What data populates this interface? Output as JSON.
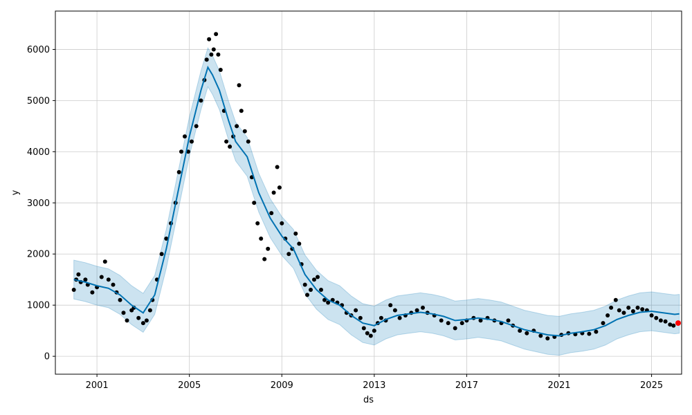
{
  "chart_data": {
    "type": "scatter",
    "xlabel": "ds",
    "ylabel": "y",
    "xlim": [
      1999.2,
      2026.3
    ],
    "ylim": [
      -350,
      6750
    ],
    "x_ticks": [
      "2001",
      "2005",
      "2009",
      "2013",
      "2017",
      "2021",
      "2025"
    ],
    "y_ticks": [
      "0",
      "1000",
      "2000",
      "3000",
      "4000",
      "5000",
      "6000"
    ],
    "grid": true,
    "colors": {
      "points": "#000000",
      "forecast_line": "#0072B2",
      "uncertainty_band": "#0072B2",
      "last_point": "#ff0000"
    },
    "series": [
      {
        "kind": "observed",
        "points": [
          [
            2000.0,
            1300
          ],
          [
            2000.1,
            1500
          ],
          [
            2000.2,
            1600
          ],
          [
            2000.3,
            1450
          ],
          [
            2000.5,
            1500
          ],
          [
            2000.6,
            1400
          ],
          [
            2000.8,
            1250
          ],
          [
            2001.0,
            1350
          ],
          [
            2001.2,
            1550
          ],
          [
            2001.35,
            1850
          ],
          [
            2001.5,
            1500
          ],
          [
            2001.7,
            1400
          ],
          [
            2001.85,
            1250
          ],
          [
            2002.0,
            1100
          ],
          [
            2002.15,
            850
          ],
          [
            2002.3,
            700
          ],
          [
            2002.5,
            900
          ],
          [
            2002.6,
            950
          ],
          [
            2002.8,
            750
          ],
          [
            2003.0,
            650
          ],
          [
            2003.15,
            700
          ],
          [
            2003.3,
            900
          ],
          [
            2003.4,
            1100
          ],
          [
            2003.6,
            1500
          ],
          [
            2003.8,
            2000
          ],
          [
            2004.0,
            2300
          ],
          [
            2004.2,
            2600
          ],
          [
            2004.4,
            3000
          ],
          [
            2004.55,
            3600
          ],
          [
            2004.65,
            4000
          ],
          [
            2004.8,
            4300
          ],
          [
            2004.95,
            4000
          ],
          [
            2005.1,
            4200
          ],
          [
            2005.3,
            4500
          ],
          [
            2005.5,
            5000
          ],
          [
            2005.65,
            5400
          ],
          [
            2005.75,
            5800
          ],
          [
            2005.85,
            6200
          ],
          [
            2005.95,
            5900
          ],
          [
            2006.05,
            6000
          ],
          [
            2006.15,
            6300
          ],
          [
            2006.25,
            5900
          ],
          [
            2006.35,
            5600
          ],
          [
            2006.5,
            4800
          ],
          [
            2006.6,
            4200
          ],
          [
            2006.75,
            4100
          ],
          [
            2006.9,
            4300
          ],
          [
            2007.05,
            4500
          ],
          [
            2007.15,
            5300
          ],
          [
            2007.25,
            4800
          ],
          [
            2007.4,
            4400
          ],
          [
            2007.55,
            4200
          ],
          [
            2007.7,
            3500
          ],
          [
            2007.8,
            3000
          ],
          [
            2007.95,
            2600
          ],
          [
            2008.1,
            2300
          ],
          [
            2008.25,
            1900
          ],
          [
            2008.4,
            2100
          ],
          [
            2008.55,
            2800
          ],
          [
            2008.65,
            3200
          ],
          [
            2008.8,
            3700
          ],
          [
            2008.9,
            3300
          ],
          [
            2009.0,
            2600
          ],
          [
            2009.15,
            2300
          ],
          [
            2009.3,
            2000
          ],
          [
            2009.45,
            2100
          ],
          [
            2009.6,
            2400
          ],
          [
            2009.75,
            2200
          ],
          [
            2009.85,
            1800
          ],
          [
            2010.0,
            1400
          ],
          [
            2010.1,
            1200
          ],
          [
            2010.25,
            1300
          ],
          [
            2010.4,
            1500
          ],
          [
            2010.55,
            1550
          ],
          [
            2010.7,
            1300
          ],
          [
            2010.85,
            1100
          ],
          [
            2011.0,
            1050
          ],
          [
            2011.2,
            1100
          ],
          [
            2011.4,
            1050
          ],
          [
            2011.6,
            1000
          ],
          [
            2011.8,
            850
          ],
          [
            2012.0,
            800
          ],
          [
            2012.2,
            900
          ],
          [
            2012.4,
            750
          ],
          [
            2012.55,
            550
          ],
          [
            2012.7,
            450
          ],
          [
            2012.85,
            400
          ],
          [
            2013.0,
            500
          ],
          [
            2013.15,
            650
          ],
          [
            2013.3,
            750
          ],
          [
            2013.5,
            700
          ],
          [
            2013.7,
            1000
          ],
          [
            2013.9,
            900
          ],
          [
            2014.1,
            750
          ],
          [
            2014.35,
            800
          ],
          [
            2014.6,
            850
          ],
          [
            2014.85,
            900
          ],
          [
            2015.1,
            950
          ],
          [
            2015.3,
            850
          ],
          [
            2015.6,
            800
          ],
          [
            2015.9,
            700
          ],
          [
            2016.2,
            650
          ],
          [
            2016.5,
            550
          ],
          [
            2016.8,
            650
          ],
          [
            2017.0,
            700
          ],
          [
            2017.3,
            750
          ],
          [
            2017.6,
            700
          ],
          [
            2017.9,
            750
          ],
          [
            2018.2,
            700
          ],
          [
            2018.5,
            650
          ],
          [
            2018.8,
            700
          ],
          [
            2019.0,
            600
          ],
          [
            2019.3,
            500
          ],
          [
            2019.6,
            450
          ],
          [
            2019.9,
            500
          ],
          [
            2020.2,
            400
          ],
          [
            2020.5,
            350
          ],
          [
            2020.8,
            380
          ],
          [
            2021.1,
            420
          ],
          [
            2021.4,
            450
          ],
          [
            2021.7,
            430
          ],
          [
            2022.0,
            450
          ],
          [
            2022.3,
            440
          ],
          [
            2022.6,
            480
          ],
          [
            2022.9,
            650
          ],
          [
            2023.1,
            800
          ],
          [
            2023.25,
            950
          ],
          [
            2023.45,
            1100
          ],
          [
            2023.6,
            900
          ],
          [
            2023.8,
            850
          ],
          [
            2024.0,
            950
          ],
          [
            2024.2,
            880
          ],
          [
            2024.4,
            950
          ],
          [
            2024.6,
            920
          ],
          [
            2024.8,
            900
          ],
          [
            2025.0,
            800
          ],
          [
            2025.2,
            750
          ],
          [
            2025.4,
            700
          ],
          [
            2025.6,
            680
          ],
          [
            2025.8,
            620
          ],
          [
            2025.95,
            600
          ]
        ]
      },
      {
        "kind": "forecast",
        "points": [
          [
            2000.0,
            1500
          ],
          [
            2000.5,
            1450
          ],
          [
            2001.0,
            1380
          ],
          [
            2001.5,
            1330
          ],
          [
            2002.0,
            1200
          ],
          [
            2002.5,
            1000
          ],
          [
            2003.0,
            850
          ],
          [
            2003.5,
            1200
          ],
          [
            2004.0,
            2100
          ],
          [
            2004.5,
            3200
          ],
          [
            2005.0,
            4300
          ],
          [
            2005.5,
            5200
          ],
          [
            2005.8,
            5650
          ],
          [
            2006.0,
            5500
          ],
          [
            2006.3,
            5200
          ],
          [
            2006.7,
            4600
          ],
          [
            2007.0,
            4200
          ],
          [
            2007.5,
            3900
          ],
          [
            2008.0,
            3200
          ],
          [
            2008.5,
            2700
          ],
          [
            2009.0,
            2350
          ],
          [
            2009.5,
            2100
          ],
          [
            2010.0,
            1600
          ],
          [
            2010.5,
            1300
          ],
          [
            2011.0,
            1100
          ],
          [
            2011.5,
            1000
          ],
          [
            2012.0,
            800
          ],
          [
            2012.5,
            650
          ],
          [
            2013.0,
            600
          ],
          [
            2013.5,
            720
          ],
          [
            2014.0,
            800
          ],
          [
            2014.5,
            830
          ],
          [
            2015.0,
            860
          ],
          [
            2015.5,
            830
          ],
          [
            2016.0,
            780
          ],
          [
            2016.5,
            700
          ],
          [
            2017.0,
            720
          ],
          [
            2017.5,
            750
          ],
          [
            2018.0,
            720
          ],
          [
            2018.5,
            680
          ],
          [
            2019.0,
            600
          ],
          [
            2019.5,
            520
          ],
          [
            2020.0,
            470
          ],
          [
            2020.5,
            420
          ],
          [
            2021.0,
            400
          ],
          [
            2021.5,
            450
          ],
          [
            2022.0,
            480
          ],
          [
            2022.5,
            520
          ],
          [
            2023.0,
            600
          ],
          [
            2023.5,
            720
          ],
          [
            2024.0,
            800
          ],
          [
            2024.5,
            860
          ],
          [
            2025.0,
            880
          ],
          [
            2025.5,
            850
          ],
          [
            2026.0,
            820
          ],
          [
            2026.2,
            830
          ]
        ],
        "band_width": 380
      },
      {
        "kind": "last_point",
        "points": [
          [
            2026.15,
            650
          ]
        ]
      }
    ]
  }
}
